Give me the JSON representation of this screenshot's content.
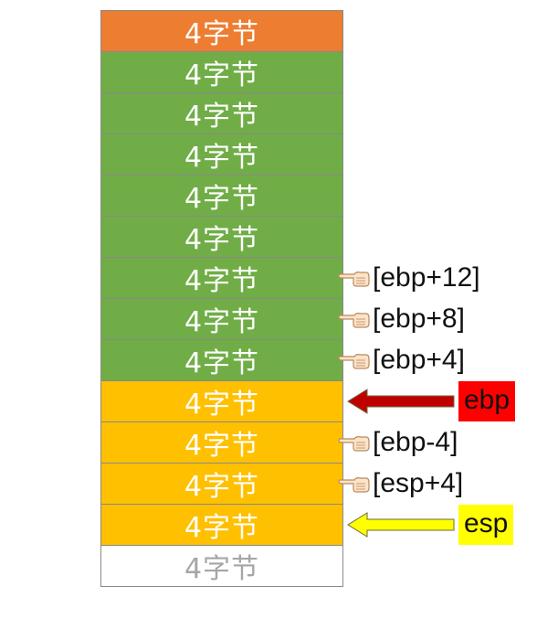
{
  "cells": [
    {
      "label": "4字节",
      "bg": "#ED7D31",
      "fg": "#ffffff"
    },
    {
      "label": "4字节",
      "bg": "#70AD47",
      "fg": "#ffffff"
    },
    {
      "label": "4字节",
      "bg": "#70AD47",
      "fg": "#ffffff"
    },
    {
      "label": "4字节",
      "bg": "#70AD47",
      "fg": "#ffffff"
    },
    {
      "label": "4字节",
      "bg": "#70AD47",
      "fg": "#ffffff"
    },
    {
      "label": "4字节",
      "bg": "#70AD47",
      "fg": "#ffffff"
    },
    {
      "label": "4字节",
      "bg": "#70AD47",
      "fg": "#ffffff"
    },
    {
      "label": "4字节",
      "bg": "#70AD47",
      "fg": "#ffffff"
    },
    {
      "label": "4字节",
      "bg": "#70AD47",
      "fg": "#ffffff"
    },
    {
      "label": "4字节",
      "bg": "#FFC000",
      "fg": "#ffffff"
    },
    {
      "label": "4字节",
      "bg": "#FFC000",
      "fg": "#ffffff"
    },
    {
      "label": "4字节",
      "bg": "#FFC000",
      "fg": "#ffffff"
    },
    {
      "label": "4字节",
      "bg": "#FFC000",
      "fg": "#ffffff"
    },
    {
      "label": "4字节",
      "bg": "#ffffff",
      "fg": "#a6a6a6"
    }
  ],
  "annotations": [
    {
      "cell_index": 6,
      "text": "[ebp+12]",
      "icon": "pointing-hand-icon"
    },
    {
      "cell_index": 7,
      "text": "[ebp+8]",
      "icon": "pointing-hand-icon"
    },
    {
      "cell_index": 8,
      "text": "[ebp+4]",
      "icon": "pointing-hand-icon"
    },
    {
      "cell_index": 10,
      "text": "[ebp-4]",
      "icon": "pointing-hand-icon"
    },
    {
      "cell_index": 11,
      "text": "[esp+4]",
      "icon": "pointing-hand-icon"
    }
  ],
  "registers": [
    {
      "cell_index": 9,
      "name": "ebp",
      "highlight": "#FF0000",
      "arrow_color": "#C00000",
      "icon": "left-arrow-icon"
    },
    {
      "cell_index": 12,
      "name": "esp",
      "highlight": "#FFFF00",
      "arrow_color": "#FFFF00",
      "icon": "left-arrow-icon"
    }
  ]
}
